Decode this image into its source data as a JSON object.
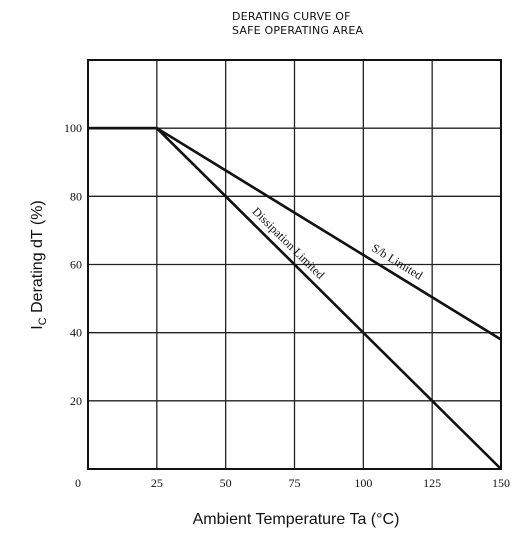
{
  "chart_data": {
    "type": "line",
    "title_lines": [
      "DERATING CURVE OF",
      "SAFE OPERATING AREA"
    ],
    "xlabel": "Ambient Temperature  Ta  (°C)",
    "ylabel_main": "I",
    "ylabel_sub": "C",
    "ylabel_rest": " Derating  dT  (%)",
    "x_ticks": [
      "0",
      "25",
      "50",
      "75",
      "100",
      "125",
      "150"
    ],
    "y_ticks": [
      "20",
      "40",
      "60",
      "80",
      "100"
    ],
    "xlim": [
      0,
      150
    ],
    "ylim": [
      0,
      120
    ],
    "grid": true,
    "series": [
      {
        "name": "S/b Limited",
        "x": [
          0,
          25,
          150
        ],
        "y": [
          100,
          100,
          38
        ]
      },
      {
        "name": "Dissipation Limited",
        "x": [
          0,
          25,
          150
        ],
        "y": [
          100,
          100,
          0
        ]
      }
    ],
    "annotations": [
      {
        "text": "S/b  Limited",
        "series": 0
      },
      {
        "text": "Dissipation  Limited",
        "series": 1
      }
    ]
  }
}
